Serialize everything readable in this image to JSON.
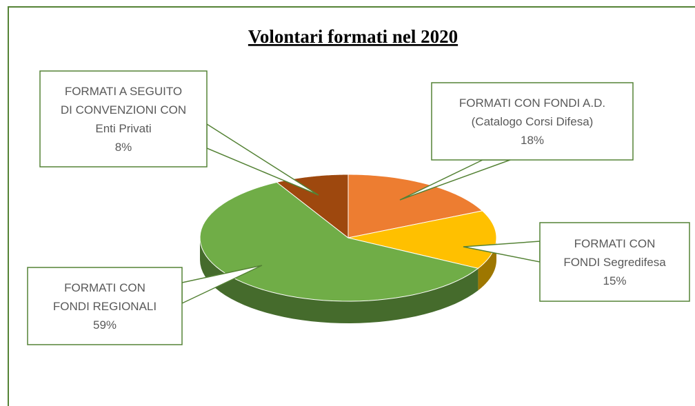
{
  "chart_data": {
    "type": "pie",
    "title": "Volontari  formati nel 2020",
    "categories": [
      "FORMATI CON FONDI A.D.\n(Catalogo Corsi Difesa)",
      "FORMATI CON\nFONDI Segredifesa",
      "FORMATI CON\nFONDI REGIONALI",
      "FORMATI A SEGUITO\nDI CONVENZIONI CON\nEnti Privati"
    ],
    "values": [
      18,
      15,
      59,
      8
    ],
    "value_labels": [
      "18%",
      "15%",
      "59%",
      "8%"
    ],
    "colors": [
      "#ed7d31",
      "#ffc000",
      "#70ad47",
      "#9e480e"
    ]
  }
}
